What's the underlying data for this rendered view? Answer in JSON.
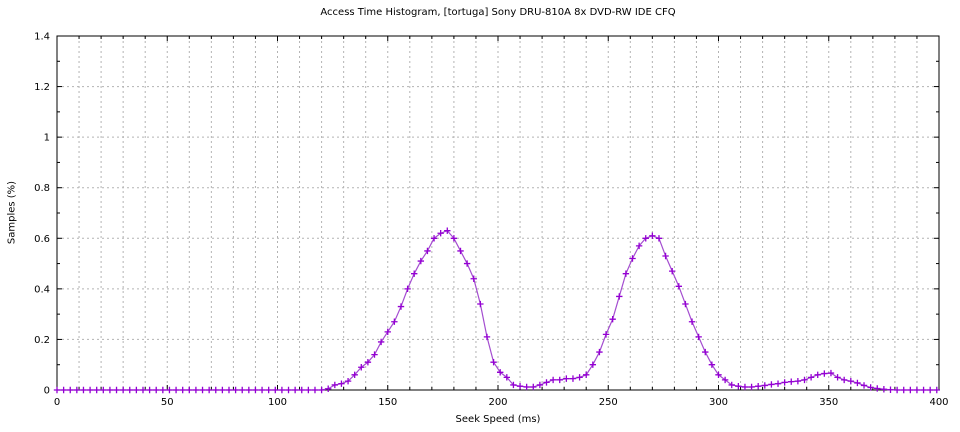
{
  "chart_data": {
    "type": "line",
    "title": "Access Time Histogram, [tortuga] Sony DRU-810A 8x DVD-RW IDE CFQ",
    "xlabel": "Seek Speed (ms)",
    "ylabel": "Samples (%)",
    "xlim": [
      0,
      400
    ],
    "ylim": [
      0,
      1.4
    ],
    "xticks": [
      0,
      50,
      100,
      150,
      200,
      250,
      300,
      350,
      400
    ],
    "xtick_labels": [
      "0",
      "50",
      "100",
      "150",
      "200",
      "250",
      "300",
      "350",
      "400"
    ],
    "xtick_minor_interval": 10,
    "yticks": [
      0,
      0.2,
      0.4,
      0.6,
      0.8,
      1,
      1.2,
      1.4
    ],
    "ytick_labels": [
      "0",
      "0.2",
      "0.4",
      "0.6",
      "0.8",
      "1",
      "1.2",
      "1.4"
    ],
    "ytick_minor_interval": 0.1,
    "grid": {
      "vertical_interval": 10,
      "horizontal_interval": 0.2,
      "style": "dotted",
      "on": true
    },
    "legend": "none",
    "colors": {
      "line": "#a44dd0",
      "marker": "#9400d3",
      "grid": "#b3b3b3",
      "frame": "#000000",
      "background": "#ffffff"
    },
    "series": [
      {
        "name": "access-time-histogram",
        "marker": "plus",
        "x": [
          0,
          3,
          6,
          9,
          12,
          15,
          18,
          21,
          24,
          27,
          30,
          33,
          36,
          39,
          42,
          45,
          48,
          51,
          54,
          57,
          60,
          63,
          66,
          69,
          72,
          75,
          78,
          81,
          84,
          87,
          90,
          93,
          96,
          99,
          102,
          105,
          108,
          111,
          114,
          117,
          120,
          123,
          126,
          129,
          132,
          135,
          138,
          141,
          144,
          147,
          150,
          153,
          156,
          159,
          162,
          165,
          168,
          171,
          174,
          177,
          180,
          183,
          186,
          189,
          192,
          195,
          198,
          201,
          204,
          207,
          210,
          213,
          216,
          219,
          222,
          225,
          228,
          231,
          234,
          237,
          240,
          243,
          246,
          249,
          252,
          255,
          258,
          261,
          264,
          267,
          270,
          273,
          276,
          279,
          282,
          285,
          288,
          291,
          294,
          297,
          300,
          303,
          306,
          309,
          312,
          315,
          318,
          321,
          324,
          327,
          330,
          333,
          336,
          339,
          342,
          345,
          348,
          351,
          354,
          357,
          360,
          363,
          366,
          369,
          372,
          375,
          378,
          381,
          384,
          387,
          390,
          393,
          396,
          399
        ],
        "y": [
          0,
          0,
          0,
          0,
          0,
          0,
          0,
          0,
          0,
          0,
          0,
          0,
          0,
          0,
          0,
          0,
          0,
          0,
          0,
          0,
          0,
          0,
          0,
          0,
          0,
          0,
          0,
          0,
          0,
          0,
          0,
          0,
          0,
          0,
          0,
          0,
          0,
          0,
          0,
          0,
          0,
          0.005,
          0.02,
          0.025,
          0.035,
          0.06,
          0.09,
          0.11,
          0.14,
          0.19,
          0.23,
          0.27,
          0.33,
          0.4,
          0.46,
          0.51,
          0.55,
          0.6,
          0.62,
          0.63,
          0.6,
          0.55,
          0.5,
          0.44,
          0.34,
          0.21,
          0.11,
          0.07,
          0.05,
          0.02,
          0.015,
          0.012,
          0.012,
          0.02,
          0.03,
          0.04,
          0.04,
          0.045,
          0.045,
          0.05,
          0.06,
          0.1,
          0.15,
          0.22,
          0.28,
          0.37,
          0.46,
          0.52,
          0.57,
          0.6,
          0.61,
          0.6,
          0.53,
          0.47,
          0.41,
          0.34,
          0.27,
          0.21,
          0.15,
          0.1,
          0.06,
          0.04,
          0.02,
          0.015,
          0.012,
          0.012,
          0.015,
          0.018,
          0.022,
          0.025,
          0.03,
          0.033,
          0.035,
          0.04,
          0.05,
          0.06,
          0.065,
          0.067,
          0.05,
          0.04,
          0.035,
          0.028,
          0.018,
          0.01,
          0.006,
          0.003,
          0.001,
          0,
          0,
          0,
          0,
          0,
          0,
          0
        ]
      }
    ]
  }
}
